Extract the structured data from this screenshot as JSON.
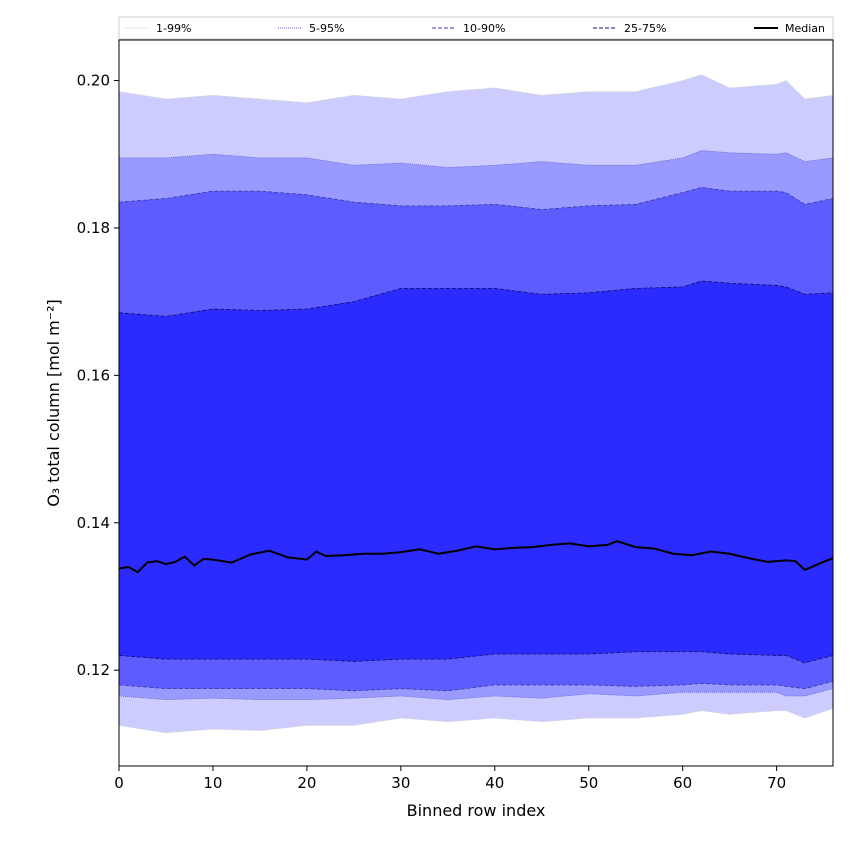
{
  "chart_data": {
    "type": "area",
    "title": "",
    "xlabel": "Binned row index",
    "ylabel": "O₃ total column [mol m⁻²]",
    "xlim": [
      0,
      76
    ],
    "ylim": [
      0.107,
      0.2055
    ],
    "xticks": [
      0,
      10,
      20,
      30,
      40,
      50,
      60,
      70
    ],
    "yticks": [
      0.12,
      0.14,
      0.16,
      0.18,
      0.2
    ],
    "ytick_labels": [
      "0.12",
      "0.14",
      "0.16",
      "0.18",
      "0.20"
    ],
    "grid": false,
    "legend_position": "top",
    "colors": {
      "band_1_99": "#ccccff",
      "band_5_95": "#9999ff",
      "band_10_90": "#5c5cff",
      "band_25_75": "#2b2bff",
      "median": "#000000"
    },
    "bands": [
      {
        "name": "1-99%",
        "x": [
          0,
          5,
          10,
          15,
          20,
          25,
          30,
          35,
          40,
          45,
          50,
          55,
          60,
          62,
          65,
          70,
          71,
          73,
          76
        ],
        "lower": [
          0.1125,
          0.1115,
          0.112,
          0.1118,
          0.1125,
          0.1125,
          0.1135,
          0.113,
          0.1135,
          0.113,
          0.1135,
          0.1135,
          0.114,
          0.1145,
          0.114,
          0.1145,
          0.1145,
          0.1135,
          0.1148
        ],
        "upper": [
          0.1985,
          0.1975,
          0.198,
          0.1975,
          0.197,
          0.198,
          0.1975,
          0.1985,
          0.199,
          0.198,
          0.1985,
          0.1985,
          0.2,
          0.2008,
          0.199,
          0.1995,
          0.2,
          0.1975,
          0.198
        ]
      },
      {
        "name": "5-95%",
        "x": [
          0,
          5,
          10,
          15,
          20,
          25,
          30,
          35,
          40,
          45,
          50,
          55,
          60,
          62,
          65,
          70,
          71,
          73,
          76
        ],
        "lower": [
          0.1165,
          0.116,
          0.1162,
          0.116,
          0.116,
          0.1162,
          0.1165,
          0.116,
          0.1165,
          0.1162,
          0.1168,
          0.1165,
          0.117,
          0.117,
          0.117,
          0.117,
          0.1165,
          0.1165,
          0.1175
        ],
        "upper": [
          0.1895,
          0.1895,
          0.19,
          0.1895,
          0.1895,
          0.1885,
          0.1888,
          0.1882,
          0.1885,
          0.189,
          0.1885,
          0.1885,
          0.1895,
          0.1905,
          0.1902,
          0.19,
          0.1902,
          0.189,
          0.1895
        ]
      },
      {
        "name": "10-90%",
        "x": [
          0,
          5,
          10,
          15,
          20,
          25,
          30,
          35,
          40,
          45,
          50,
          55,
          60,
          62,
          65,
          70,
          71,
          73,
          76
        ],
        "lower": [
          0.118,
          0.1175,
          0.1175,
          0.1175,
          0.1175,
          0.1172,
          0.1175,
          0.1172,
          0.118,
          0.118,
          0.118,
          0.1178,
          0.118,
          0.1182,
          0.118,
          0.118,
          0.1178,
          0.1175,
          0.1185
        ],
        "upper": [
          0.1835,
          0.184,
          0.185,
          0.185,
          0.1845,
          0.1835,
          0.183,
          0.183,
          0.1832,
          0.1825,
          0.183,
          0.1832,
          0.1848,
          0.1855,
          0.185,
          0.185,
          0.1848,
          0.1832,
          0.184
        ]
      },
      {
        "name": "25-75%",
        "x": [
          0,
          5,
          10,
          15,
          20,
          25,
          30,
          35,
          40,
          45,
          50,
          55,
          60,
          62,
          65,
          70,
          71,
          73,
          76
        ],
        "lower": [
          0.122,
          0.1215,
          0.1215,
          0.1215,
          0.1215,
          0.1212,
          0.1215,
          0.1215,
          0.1222,
          0.1222,
          0.1222,
          0.1225,
          0.1225,
          0.1225,
          0.1222,
          0.122,
          0.122,
          0.121,
          0.122
        ],
        "upper": [
          0.1685,
          0.168,
          0.169,
          0.1688,
          0.169,
          0.17,
          0.1718,
          0.1718,
          0.1718,
          0.171,
          0.1712,
          0.1718,
          0.172,
          0.1728,
          0.1725,
          0.1722,
          0.172,
          0.171,
          0.1712
        ]
      }
    ],
    "median": {
      "name": "Median",
      "x": [
        0,
        1,
        2,
        3,
        4,
        5,
        6,
        7,
        8,
        9,
        10,
        12,
        14,
        16,
        18,
        20,
        21,
        22,
        24,
        26,
        28,
        30,
        32,
        34,
        36,
        38,
        40,
        42,
        44,
        46,
        48,
        50,
        52,
        53,
        55,
        57,
        59,
        61,
        63,
        65,
        67,
        69,
        71,
        72,
        73,
        75,
        76
      ],
      "y": [
        0.1338,
        0.134,
        0.1333,
        0.1346,
        0.1348,
        0.1344,
        0.1347,
        0.1354,
        0.1342,
        0.1351,
        0.135,
        0.1346,
        0.1357,
        0.1362,
        0.1353,
        0.135,
        0.1361,
        0.1355,
        0.1356,
        0.1358,
        0.1358,
        0.136,
        0.1364,
        0.1358,
        0.1362,
        0.1368,
        0.1364,
        0.1366,
        0.1367,
        0.137,
        0.1372,
        0.1368,
        0.137,
        0.1375,
        0.1367,
        0.1365,
        0.1358,
        0.1356,
        0.1361,
        0.1358,
        0.1352,
        0.1347,
        0.1349,
        0.1348,
        0.1336,
        0.1347,
        0.1352
      ]
    }
  }
}
